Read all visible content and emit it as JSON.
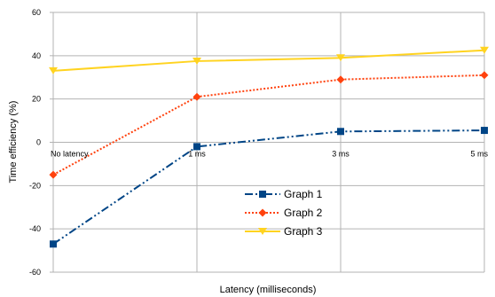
{
  "chart_data": {
    "type": "line",
    "title": "",
    "xlabel": "Latency (milliseconds)",
    "ylabel": "Time efficiency (%)",
    "categories": [
      "No latency",
      "1 ms",
      "3 ms",
      "5 ms"
    ],
    "ylim": [
      -60,
      60
    ],
    "yticks": [
      -60,
      -40,
      -20,
      0,
      20,
      40,
      60
    ],
    "grid": true,
    "legend_position": "lower-middle",
    "series": [
      {
        "name": "Graph 1",
        "values": [
          -47,
          -2,
          5,
          5.5
        ],
        "color": "#004586",
        "marker": "square",
        "line_style": "dash-dot-dot"
      },
      {
        "name": "Graph 2",
        "values": [
          -15,
          21,
          29,
          31
        ],
        "color": "#ff420e",
        "marker": "diamond",
        "line_style": "dotted"
      },
      {
        "name": "Graph 3",
        "values": [
          33,
          37.5,
          39,
          42.5
        ],
        "color": "#ffd320",
        "marker": "triangle-down",
        "line_style": "solid"
      }
    ]
  }
}
